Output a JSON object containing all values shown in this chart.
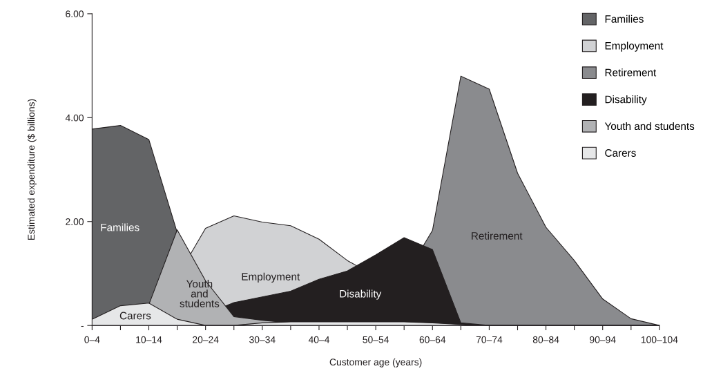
{
  "chart_data": {
    "type": "area",
    "xlabel": "Customer age (years)",
    "ylabel": "Estimated expenditure ($ billions)",
    "categories": [
      "0–4",
      null,
      "10–14",
      null,
      "20–24",
      null,
      "30–34",
      null,
      "40–4",
      null,
      "50–54",
      null,
      "60–64",
      null,
      "70–74",
      null,
      "80–84",
      null,
      "90–94",
      null,
      "100–104"
    ],
    "series": [
      {
        "name": "Families",
        "color": "#636466",
        "values": [
          3.78,
          3.85,
          3.58,
          null,
          0,
          0,
          0,
          0,
          0,
          0,
          0,
          0,
          0,
          0,
          0,
          0,
          0,
          0,
          0,
          0,
          0
        ]
      },
      {
        "name": "Employment",
        "color": "#d1d2d4",
        "values": [
          0,
          0,
          0,
          null,
          1.87,
          2.11,
          1.99,
          1.92,
          1.66,
          1.25,
          null,
          null,
          null,
          0,
          0,
          0,
          0,
          0,
          0,
          0,
          0
        ]
      },
      {
        "name": "Retirement",
        "color": "#8a8b8e",
        "values": [
          0,
          0,
          0,
          0,
          0,
          0,
          0,
          0,
          0,
          0,
          0,
          null,
          1.83,
          4.8,
          4.55,
          2.93,
          1.89,
          1.25,
          0.51,
          0.13,
          0
        ]
      },
      {
        "name": "Disability",
        "color": "#231f20",
        "values": [
          0,
          0,
          0,
          0,
          null,
          0.44,
          0.55,
          0.66,
          0.89,
          1.05,
          1.36,
          1.69,
          1.46,
          0.05,
          0,
          0,
          0,
          0,
          0,
          0,
          0
        ]
      },
      {
        "name": "Youth and students",
        "color": "#b1b2b4",
        "values": [
          0,
          0,
          0.4,
          1.84,
          0.86,
          0.17,
          0.1,
          0.05,
          0.05,
          0.05,
          0.05,
          0.05,
          0.03,
          0,
          0,
          0,
          0,
          0,
          0,
          0,
          0
        ]
      },
      {
        "name": "Carers",
        "color": "#e6e7e8",
        "values": [
          0.12,
          0.38,
          0.43,
          0.12,
          0,
          0,
          0.05,
          0.07,
          0.07,
          0.07,
          0.07,
          0.07,
          0.05,
          0.02,
          0,
          0,
          0,
          0,
          0,
          0,
          0
        ]
      }
    ],
    "annotations": [
      "Families",
      "Employment",
      "Retirement",
      "Disability",
      "Youth\nand\nstudents",
      "Carers"
    ],
    "ylim": [
      0,
      6
    ],
    "yticks": [
      {
        "value": 0,
        "label": "-"
      },
      {
        "value": 2,
        "label": "2.00"
      },
      {
        "value": 4,
        "label": "4.00"
      },
      {
        "value": 6,
        "label": "6.00"
      }
    ],
    "legend": "top right",
    "grid": false
  }
}
